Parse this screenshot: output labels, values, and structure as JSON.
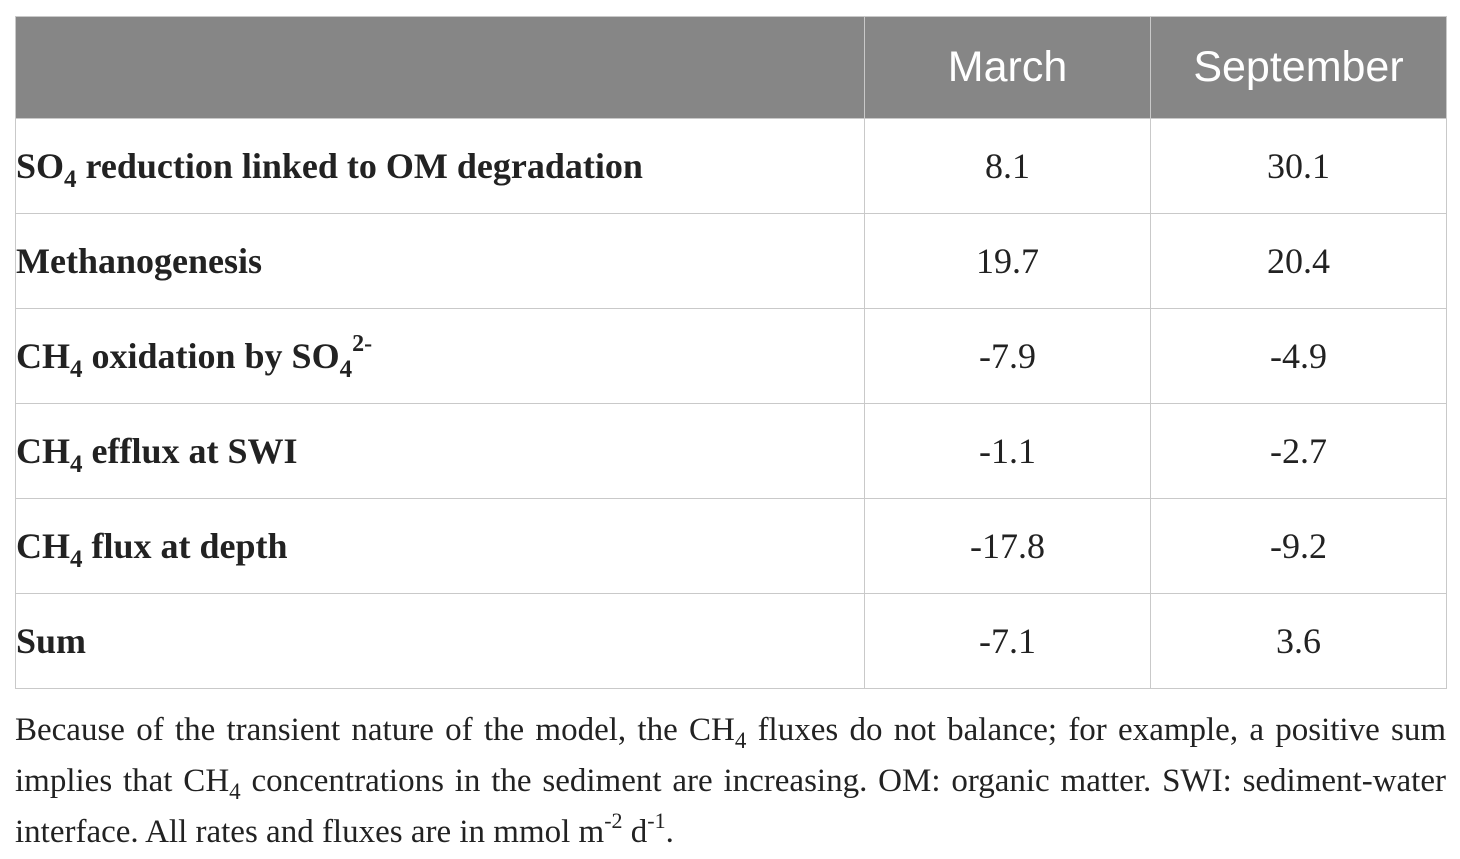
{
  "table": {
    "header": {
      "empty": "",
      "col1": "March",
      "col2": "September"
    },
    "rows": [
      {
        "label_parts": [
          "SO",
          "4",
          " reduction linked to OM degradation"
        ],
        "march": "8.1",
        "september": "30.1"
      },
      {
        "label_parts": [
          "Methanogenesis"
        ],
        "march": "19.7",
        "september": "20.4"
      },
      {
        "label_parts": [
          "CH",
          "4",
          " oxidation by SO",
          "4",
          "2-"
        ],
        "march": "-7.9",
        "september": "-4.9"
      },
      {
        "label_parts": [
          "CH",
          "4",
          " efflux at SWI"
        ],
        "march": "-1.1",
        "september": "-2.7"
      },
      {
        "label_parts": [
          "CH",
          "4",
          " flux at depth"
        ],
        "march": "-17.8",
        "september": "-9.2"
      },
      {
        "label_parts": [
          "Sum"
        ],
        "march": "-7.1",
        "september": "3.6"
      }
    ]
  },
  "footnote": {
    "part1": "Because of the transient nature of the model, the CH",
    "sub1": "4",
    "part2": " fluxes do not balance; for example, a positive sum implies that CH",
    "sub2": "4",
    "part3": " concentrations in the sediment are increasing. OM: organic matter. SWI: sediment-water interface. All rates and fluxes are in mmol m",
    "sup1": "-2",
    "part4": " d",
    "sup2": "-1",
    "part5": "."
  },
  "colors": {
    "header_bg": "#868686",
    "header_text": "#ffffff",
    "border": "#c9c9c9",
    "text": "#222222"
  }
}
